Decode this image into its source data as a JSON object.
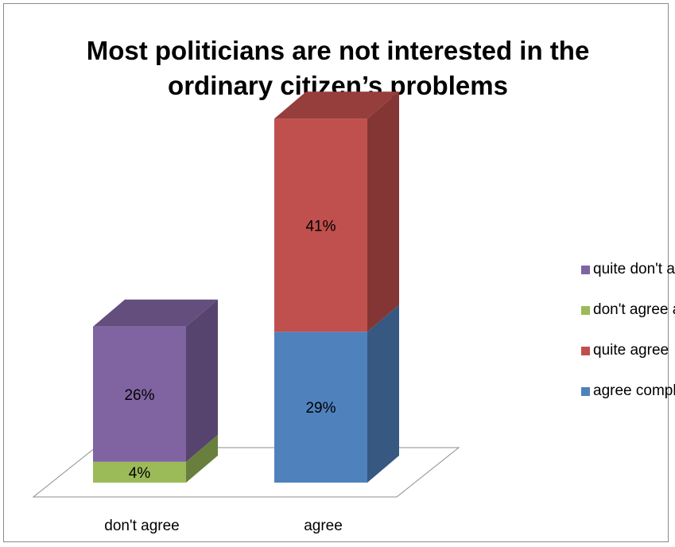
{
  "chart_data": {
    "type": "bar",
    "stacked": true,
    "three_d": true,
    "title": "Most politicians are not interested in the ordinary citizen’s problems",
    "title_lines": [
      "Most politicians are not interested in the",
      "ordinary citizen’s problems"
    ],
    "categories": [
      "don't agree",
      "agree"
    ],
    "series": [
      {
        "name": "don't agree at all",
        "color": "#9bbb59",
        "values": [
          4,
          0
        ],
        "labels": [
          "4%",
          ""
        ]
      },
      {
        "name": "quite don't agree",
        "color": "#8064a2",
        "values": [
          26,
          0
        ],
        "labels": [
          "26%",
          ""
        ]
      },
      {
        "name": "agree completely",
        "color": "#4f81bd",
        "values": [
          0,
          29
        ],
        "labels": [
          "",
          "29%"
        ]
      },
      {
        "name": "quite agree",
        "color": "#c0504d",
        "values": [
          0,
          41
        ],
        "labels": [
          "",
          "41%"
        ]
      }
    ],
    "legend": {
      "position": "right",
      "items": [
        {
          "name": "quite don't agree",
          "color": "#8064a2"
        },
        {
          "name": "don't agree at all",
          "color": "#9bbb59"
        },
        {
          "name": "quite agree",
          "color": "#c0504d"
        },
        {
          "name": "agree completely",
          "color": "#4f81bd"
        }
      ]
    },
    "ylim": [
      0,
      70
    ],
    "value_axis_visible": false,
    "grid": false,
    "xlabel": "",
    "ylabel": ""
  }
}
